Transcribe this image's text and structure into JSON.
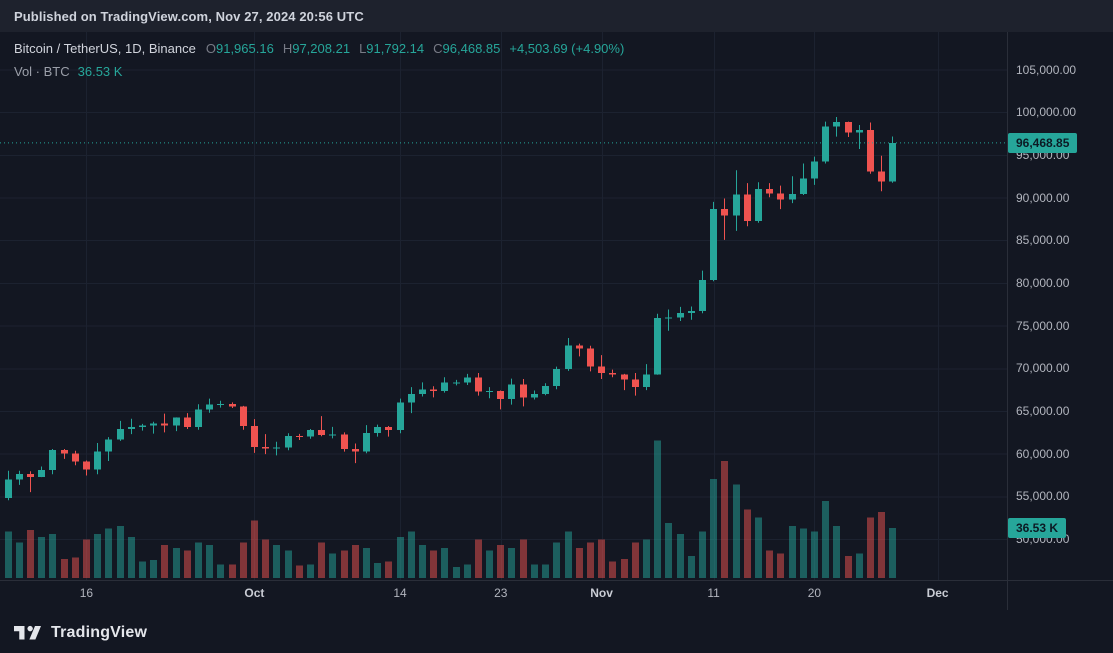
{
  "meta": {
    "published": "Published on TradingView.com, Nov 27, 2024 20:56 UTC"
  },
  "legend": {
    "symbol": "Bitcoin / TetherUS, 1D, Binance",
    "ohlc": {
      "o": {
        "label": "O",
        "value": "91,965.16"
      },
      "h": {
        "label": "H",
        "value": "97,208.21"
      },
      "l": {
        "label": "L",
        "value": "91,792.14"
      },
      "c": {
        "label": "C",
        "value": "96,468.85"
      }
    },
    "change": "+4,503.69 (+4.90%)",
    "volume_label": "Vol · BTC",
    "volume_value": "36.53 K"
  },
  "badges": {
    "price": "96,468.85",
    "volume": "36.53 K"
  },
  "axes": {
    "price_labels": [
      "105,000.00",
      "100,000.00",
      "95,000.00",
      "90,000.00",
      "85,000.00",
      "80,000.00",
      "75,000.00",
      "70,000.00",
      "65,000.00",
      "60,000.00",
      "55,000.00",
      "50,000.00"
    ],
    "time_labels": [
      {
        "label": "16",
        "index": 7,
        "major": false
      },
      {
        "label": "Oct",
        "index": 22,
        "major": true
      },
      {
        "label": "14",
        "index": 35,
        "major": false
      },
      {
        "label": "23",
        "index": 44,
        "major": false
      },
      {
        "label": "Nov",
        "index": 53,
        "major": true
      },
      {
        "label": "11",
        "index": 63,
        "major": false
      },
      {
        "label": "20",
        "index": 72,
        "major": false
      },
      {
        "label": "Dec",
        "index": 83,
        "major": true
      }
    ]
  },
  "footer": {
    "brand": "TradingView"
  },
  "colors": {
    "up": "#26a69a",
    "down": "#ef5350",
    "bg": "#131722",
    "topbar": "#1e222d",
    "grid": "#1c2230",
    "separator": "#2a2e39",
    "axis_text": "#b2b5be",
    "badge_text": "#0c1a24"
  },
  "chart_data": {
    "type": "candlestick",
    "title": "Bitcoin / TetherUS, 1D, Binance",
    "symbol": "BTC/USDT",
    "interval": "1D",
    "exchange": "Binance",
    "legend_position": "top-left",
    "grid": true,
    "y_axis": {
      "min": 45000,
      "max": 109000,
      "tick_step": 5000,
      "ticks": [
        50000,
        55000,
        60000,
        65000,
        70000,
        75000,
        80000,
        85000,
        90000,
        95000,
        100000,
        105000
      ]
    },
    "volume_pane": {
      "unit": "K BTC",
      "max_visible_k": 100
    },
    "last_price": 96468.85,
    "last_volume_k": 36.53,
    "change_abs": 4503.69,
    "change_pct": 4.9,
    "candles_columns": [
      "date",
      "open",
      "high",
      "low",
      "close",
      "volume_k_btc"
    ],
    "candles": [
      [
        "Sep 9",
        54850,
        58050,
        54600,
        57050,
        34
      ],
      [
        "Sep 10",
        57050,
        58050,
        56400,
        57650,
        26
      ],
      [
        "Sep 11",
        57650,
        58000,
        55550,
        57350,
        35
      ],
      [
        "Sep 12",
        57350,
        58550,
        57300,
        58130,
        30
      ],
      [
        "Sep 13",
        58130,
        60600,
        57650,
        60500,
        32
      ],
      [
        "Sep 14",
        60500,
        60600,
        59450,
        60050,
        14
      ],
      [
        "Sep 15",
        60050,
        60400,
        58700,
        59150,
        15
      ],
      [
        "Sep 16",
        59150,
        59250,
        57500,
        58200,
        28
      ],
      [
        "Sep 17",
        58200,
        61300,
        57650,
        60300,
        32
      ],
      [
        "Sep 18",
        60300,
        62000,
        59200,
        61700,
        36
      ],
      [
        "Sep 19",
        61700,
        63900,
        61550,
        62950,
        38
      ],
      [
        "Sep 20",
        62950,
        64150,
        62350,
        63200,
        30
      ],
      [
        "Sep 21",
        63200,
        63550,
        62750,
        63350,
        12
      ],
      [
        "Sep 22",
        63350,
        63800,
        62400,
        63600,
        13
      ],
      [
        "Sep 23",
        63600,
        64750,
        62550,
        63350,
        24
      ],
      [
        "Sep 24",
        63350,
        64300,
        62700,
        64300,
        22
      ],
      [
        "Sep 25",
        64300,
        64800,
        62950,
        63150,
        20
      ],
      [
        "Sep 26",
        63150,
        65850,
        62850,
        65200,
        26
      ],
      [
        "Sep 27",
        65200,
        66500,
        64850,
        65800,
        24
      ],
      [
        "Sep 28",
        65800,
        66250,
        65450,
        65900,
        10
      ],
      [
        "Sep 29",
        65900,
        66070,
        65400,
        65600,
        10
      ],
      [
        "Sep 30",
        65600,
        65650,
        62850,
        63300,
        26
      ],
      [
        "Oct 1",
        63300,
        64100,
        60150,
        60850,
        42
      ],
      [
        "Oct 2",
        60850,
        62350,
        60000,
        60650,
        28
      ],
      [
        "Oct 3",
        60650,
        61450,
        59850,
        60750,
        24
      ],
      [
        "Oct 4",
        60750,
        62450,
        60450,
        62100,
        20
      ],
      [
        "Oct 5",
        62100,
        62370,
        61650,
        62050,
        9
      ],
      [
        "Oct 6",
        62050,
        62950,
        61800,
        62800,
        10
      ],
      [
        "Oct 7",
        62800,
        64450,
        62100,
        62250,
        26
      ],
      [
        "Oct 8",
        62250,
        63200,
        61850,
        62300,
        18
      ],
      [
        "Oct 9",
        62300,
        62550,
        60300,
        60600,
        20
      ],
      [
        "Oct 10",
        60600,
        61250,
        58950,
        60300,
        24
      ],
      [
        "Oct 11",
        60300,
        63400,
        60100,
        62450,
        22
      ],
      [
        "Oct 12",
        62450,
        63450,
        62050,
        63200,
        11
      ],
      [
        "Oct 13",
        63200,
        63300,
        62050,
        62850,
        12
      ],
      [
        "Oct 14",
        62850,
        66500,
        62450,
        66050,
        30
      ],
      [
        "Oct 15",
        66050,
        67850,
        64800,
        67050,
        34
      ],
      [
        "Oct 16",
        67050,
        68400,
        66750,
        67600,
        24
      ],
      [
        "Oct 17",
        67600,
        67950,
        66650,
        67400,
        20
      ],
      [
        "Oct 18",
        67400,
        69000,
        67200,
        68400,
        22
      ],
      [
        "Oct 19",
        68400,
        68700,
        68050,
        68400,
        8
      ],
      [
        "Oct 20",
        68400,
        69400,
        68100,
        69000,
        10
      ],
      [
        "Oct 21",
        69000,
        69500,
        66850,
        67350,
        28
      ],
      [
        "Oct 22",
        67350,
        67850,
        66550,
        67400,
        20
      ],
      [
        "Oct 23",
        67400,
        67450,
        65250,
        66450,
        24
      ],
      [
        "Oct 24",
        66450,
        68850,
        65800,
        68150,
        22
      ],
      [
        "Oct 25",
        68150,
        68800,
        65600,
        66650,
        28
      ],
      [
        "Oct 26",
        66650,
        67450,
        66400,
        67050,
        10
      ],
      [
        "Oct 27",
        67050,
        68300,
        66900,
        68000,
        10
      ],
      [
        "Oct 28",
        68000,
        70250,
        67600,
        69950,
        26
      ],
      [
        "Oct 29",
        69950,
        73600,
        69750,
        72700,
        34
      ],
      [
        "Oct 30",
        72700,
        72950,
        71450,
        72350,
        22
      ],
      [
        "Oct 31",
        72350,
        72700,
        69700,
        70250,
        26
      ],
      [
        "Nov 1",
        70250,
        71600,
        68800,
        69500,
        28
      ],
      [
        "Nov 2",
        69500,
        69900,
        69000,
        69350,
        12
      ],
      [
        "Nov 3",
        69350,
        69400,
        67500,
        68750,
        14
      ],
      [
        "Nov 4",
        68750,
        69500,
        66850,
        67850,
        26
      ],
      [
        "Nov 5",
        67850,
        70550,
        67500,
        69350,
        28
      ],
      [
        "Nov 6",
        69350,
        76450,
        69300,
        75950,
        100
      ],
      [
        "Nov 7",
        75950,
        76950,
        74450,
        76000,
        40
      ],
      [
        "Nov 8",
        76000,
        77250,
        75600,
        76550,
        32
      ],
      [
        "Nov 9",
        76550,
        77300,
        75750,
        76750,
        16
      ],
      [
        "Nov 10",
        76750,
        81500,
        76500,
        80400,
        34
      ],
      [
        "Nov 11",
        80400,
        89550,
        80250,
        88700,
        72
      ],
      [
        "Nov 12",
        88700,
        89950,
        85100,
        87950,
        85
      ],
      [
        "Nov 13",
        87950,
        93250,
        86150,
        90400,
        68
      ],
      [
        "Nov 14",
        90400,
        91750,
        86700,
        87300,
        50
      ],
      [
        "Nov 15",
        87300,
        91850,
        87100,
        91050,
        44
      ],
      [
        "Nov 16",
        91050,
        91750,
        90100,
        90550,
        20
      ],
      [
        "Nov 17",
        90550,
        91450,
        88700,
        89850,
        18
      ],
      [
        "Nov 18",
        89850,
        92550,
        89400,
        90500,
        38
      ],
      [
        "Nov 19",
        90500,
        94050,
        90350,
        92300,
        36
      ],
      [
        "Nov 20",
        92300,
        94850,
        91550,
        94300,
        34
      ],
      [
        "Nov 21",
        94300,
        98950,
        94050,
        98400,
        56
      ],
      [
        "Nov 22",
        98400,
        99500,
        97200,
        98900,
        38
      ],
      [
        "Nov 23",
        98900,
        98950,
        97150,
        97700,
        16
      ],
      [
        "Nov 24",
        97700,
        98550,
        95750,
        98000,
        18
      ],
      [
        "Nov 25",
        98000,
        98850,
        92850,
        93100,
        44
      ],
      [
        "Nov 26",
        93100,
        94950,
        90800,
        91965.16,
        48
      ],
      [
        "Nov 27",
        91965.16,
        97208.21,
        91792.14,
        96468.85,
        36.53
      ]
    ]
  }
}
